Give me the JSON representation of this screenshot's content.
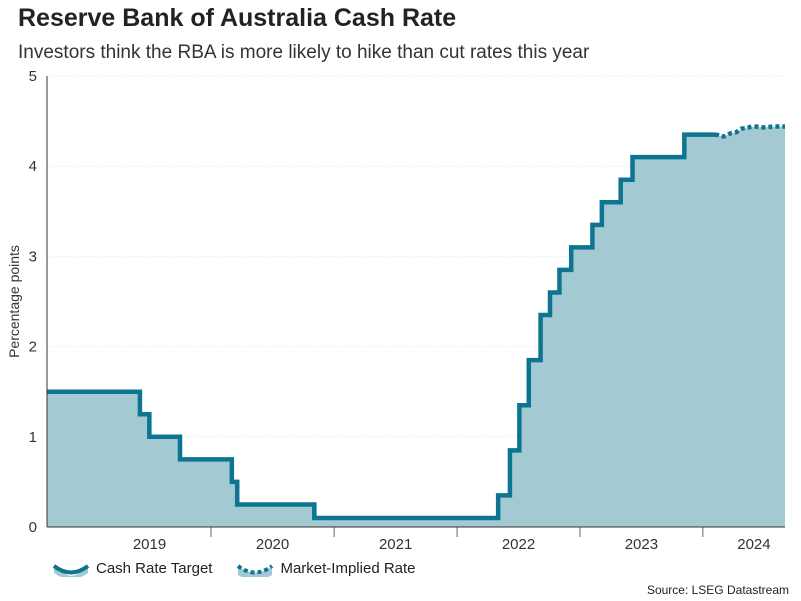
{
  "title": "Reserve Bank of Australia Cash Rate",
  "subtitle": "Investors think the RBA is more likely to hike than cut rates this year",
  "source": "Source: LSEG Datastream",
  "colors": {
    "line": "#0e7590",
    "area": "#a3c9d3",
    "grid": "#e3e3e3",
    "axis": "#333333"
  },
  "chart_data": {
    "type": "line",
    "ylabel": "Percentage points",
    "ylim": [
      0,
      5
    ],
    "yticks": [
      "0",
      "1",
      "2",
      "3",
      "4",
      "5"
    ],
    "xlim": [
      "2018-09-01",
      "2024-09-01"
    ],
    "xticks": [
      {
        "label": "2019",
        "date": "2019-01-01"
      },
      {
        "label": "2020",
        "date": "2020-01-01"
      },
      {
        "label": "2021",
        "date": "2021-01-01"
      },
      {
        "label": "2022",
        "date": "2022-01-01"
      },
      {
        "label": "2023",
        "date": "2023-01-01"
      },
      {
        "label": "2024",
        "date": "2024-01-01"
      }
    ],
    "area_fill": true,
    "grid": true,
    "series": [
      {
        "name": "Cash Rate Target",
        "style": "solid",
        "step": true,
        "points": [
          [
            "2018-09-01",
            1.5
          ],
          [
            "2019-06-04",
            1.25
          ],
          [
            "2019-07-02",
            1.0
          ],
          [
            "2019-10-01",
            0.75
          ],
          [
            "2020-03-03",
            0.5
          ],
          [
            "2020-03-19",
            0.25
          ],
          [
            "2020-11-03",
            0.1
          ],
          [
            "2022-05-03",
            0.35
          ],
          [
            "2022-06-07",
            0.85
          ],
          [
            "2022-07-05",
            1.35
          ],
          [
            "2022-08-02",
            1.85
          ],
          [
            "2022-09-06",
            2.35
          ],
          [
            "2022-10-04",
            2.6
          ],
          [
            "2022-11-01",
            2.85
          ],
          [
            "2022-12-06",
            3.1
          ],
          [
            "2023-02-07",
            3.35
          ],
          [
            "2023-03-07",
            3.6
          ],
          [
            "2023-05-02",
            3.85
          ],
          [
            "2023-06-06",
            4.1
          ],
          [
            "2023-11-07",
            4.35
          ],
          [
            "2024-02-06",
            4.35
          ]
        ]
      },
      {
        "name": "Market-Implied Rate",
        "style": "dotted",
        "step": false,
        "points": [
          [
            "2024-02-06",
            4.35
          ],
          [
            "2024-03-01",
            4.33
          ],
          [
            "2024-04-01",
            4.37
          ],
          [
            "2024-05-01",
            4.42
          ],
          [
            "2024-06-01",
            4.44
          ],
          [
            "2024-07-01",
            4.43
          ],
          [
            "2024-08-01",
            4.44
          ],
          [
            "2024-09-01",
            4.44
          ]
        ]
      }
    ],
    "legend": {
      "placement": "bottom-left",
      "entries": [
        "Cash Rate Target",
        "Market-Implied Rate"
      ]
    }
  }
}
